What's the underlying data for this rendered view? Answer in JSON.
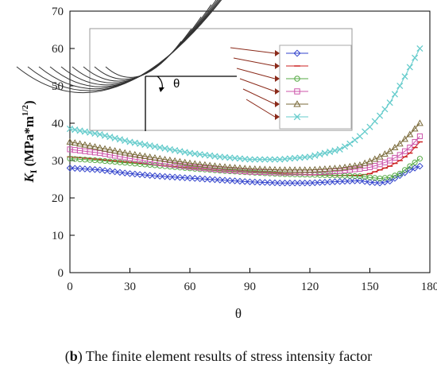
{
  "chart_data": {
    "type": "line",
    "xlabel": "θ",
    "ylabel_main": "K",
    "ylabel_sub": "I",
    "ylabel_unit_pre": " (MPa*m",
    "ylabel_unit_sup": "1/2",
    "ylabel_unit_post": ")",
    "xlim": [
      0,
      180
    ],
    "ylim": [
      0,
      70
    ],
    "xticks": [
      "0",
      "30",
      "60",
      "90",
      "120",
      "150",
      "180"
    ],
    "yticks": [
      "0",
      "10",
      "20",
      "30",
      "40",
      "50",
      "60",
      "70"
    ],
    "grid": false,
    "legend": "top-right (inset)",
    "inset_label": "θ",
    "series": [
      {
        "color": "#3344cc",
        "marker": "diamond",
        "x": [
          0,
          15,
          30,
          45,
          60,
          75,
          90,
          105,
          120,
          135,
          145,
          150,
          155,
          160,
          165,
          170,
          175
        ],
        "y": [
          28,
          27.5,
          26.5,
          25.8,
          25.3,
          24.8,
          24.3,
          24,
          24,
          24.4,
          24.6,
          24.2,
          24,
          24.5,
          26,
          27.5,
          28.5
        ]
      },
      {
        "color": "#cc2222",
        "marker": "dash",
        "x": [
          0,
          15,
          30,
          45,
          60,
          75,
          90,
          105,
          120,
          135,
          145,
          150,
          155,
          160,
          165,
          170,
          175
        ],
        "y": [
          31,
          30.3,
          29.5,
          28.7,
          28,
          27.3,
          26.8,
          26.5,
          26.2,
          26,
          26,
          26.5,
          27.5,
          28.5,
          30,
          32,
          35
        ]
      },
      {
        "color": "#55aa44",
        "marker": "circle",
        "x": [
          0,
          15,
          30,
          45,
          60,
          75,
          90,
          105,
          120,
          135,
          145,
          150,
          155,
          160,
          165,
          170,
          175
        ],
        "y": [
          30.5,
          30,
          29.3,
          28.6,
          27.9,
          27.3,
          26.8,
          26.4,
          26.2,
          26,
          25.8,
          25.5,
          25.2,
          25.5,
          26.5,
          28.5,
          30.5
        ]
      },
      {
        "color": "#cc55aa",
        "marker": "square",
        "x": [
          0,
          15,
          30,
          45,
          60,
          75,
          90,
          105,
          120,
          135,
          145,
          150,
          155,
          160,
          165,
          170,
          175
        ],
        "y": [
          33,
          32,
          30.6,
          29.3,
          28.3,
          27.6,
          27,
          26.8,
          26.8,
          27.2,
          27.8,
          28.2,
          29,
          30,
          31.5,
          33.5,
          36.5
        ]
      },
      {
        "color": "#7a6a3a",
        "marker": "triangle",
        "x": [
          0,
          15,
          30,
          45,
          60,
          75,
          90,
          105,
          120,
          135,
          145,
          150,
          155,
          160,
          165,
          170,
          175
        ],
        "y": [
          35,
          33.4,
          31.8,
          30.5,
          29.3,
          28.4,
          27.8,
          27.5,
          27.5,
          28,
          28.8,
          29.8,
          31,
          32.5,
          34.5,
          37,
          40
        ]
      },
      {
        "color": "#66cccc",
        "marker": "x",
        "x": [
          0,
          15,
          30,
          45,
          60,
          75,
          90,
          105,
          120,
          135,
          140,
          145,
          150,
          155,
          160,
          165,
          170,
          175
        ],
        "y": [
          38.5,
          37,
          35,
          33.5,
          32,
          31,
          30.3,
          30.3,
          31,
          33,
          34.5,
          36.5,
          39,
          42,
          45.5,
          50,
          55,
          60
        ]
      }
    ]
  },
  "caption": {
    "label": "b",
    "open": "(",
    "close": ")",
    "text": " The finite element results of stress intensity factor"
  }
}
